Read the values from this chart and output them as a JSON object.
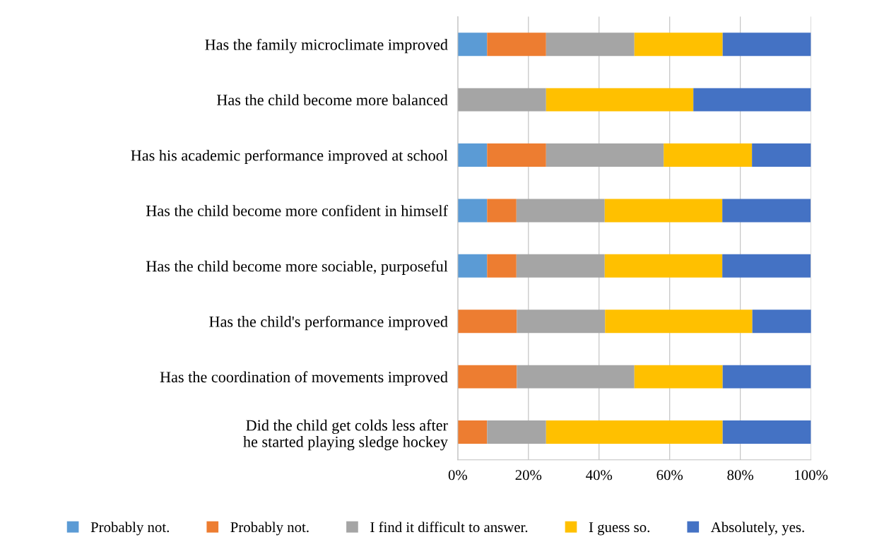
{
  "chart_data": {
    "type": "bar",
    "orientation": "horizontal",
    "stacked": true,
    "categories": [
      "Has the family microclimate improved",
      "Has the child become more balanced",
      "Has his academic performance improved at school",
      "Has the child become more confident in himself",
      "Has the child become more sociable, purposeful",
      "Has the child's performance improved",
      "Has the coordination of movements improved",
      "Did the child get colds less after\nhe started playing sledge hockey"
    ],
    "series": [
      {
        "name": "Probably not.",
        "color": "#5b9bd5",
        "values": [
          8.3,
          0,
          8.3,
          8.3,
          8.3,
          0,
          0,
          0
        ]
      },
      {
        "name": "Probably not.",
        "color": "#ed7d31",
        "values": [
          16.7,
          0,
          16.7,
          8.3,
          8.3,
          16.7,
          16.7,
          8.3
        ]
      },
      {
        "name": "I find it difficult to answer.",
        "color": "#a5a5a5",
        "values": [
          25,
          25,
          33.3,
          25,
          25,
          25,
          33.3,
          16.7
        ]
      },
      {
        "name": "I guess so.",
        "color": "#ffc000",
        "values": [
          25,
          41.7,
          25,
          33.3,
          33.3,
          41.7,
          25,
          50
        ]
      },
      {
        "name": "Absolutely, yes.",
        "color": "#4472c4",
        "values": [
          25,
          33.3,
          16.7,
          25,
          25,
          16.7,
          25,
          25
        ]
      }
    ],
    "xlim": [
      0,
      100
    ],
    "xticks": [
      {
        "value": 0,
        "label": "0%"
      },
      {
        "value": 20,
        "label": "20%"
      },
      {
        "value": 40,
        "label": "40%"
      },
      {
        "value": 60,
        "label": "60%"
      },
      {
        "value": 80,
        "label": "80%"
      },
      {
        "value": 100,
        "label": "100%"
      }
    ],
    "grid": "x",
    "legend": "bottom"
  }
}
